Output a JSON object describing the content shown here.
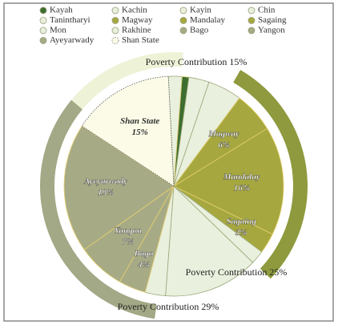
{
  "chart_data": {
    "type": "pie",
    "categories": [
      "Kayah",
      "Kachin",
      "Kayin",
      "Chin",
      "Tanintharyi",
      "Magway",
      "Mandalay",
      "Sagaing",
      "Mon",
      "Rakhine",
      "Bago",
      "Yangon",
      "Ayeyarwady",
      "Shan State"
    ],
    "values": [
      1,
      2,
      3,
      5,
      2,
      6,
      16,
      3,
      3,
      14,
      4,
      7,
      19,
      15
    ],
    "value_labels": [
      null,
      null,
      null,
      null,
      null,
      "6%",
      "16%",
      "3%",
      null,
      null,
      "4%",
      "7%",
      "19%",
      "15%"
    ],
    "colors": [
      "#3d6e30",
      "#e9f0dd",
      "#e9f0dd",
      "#e9f0dd",
      "#e9f0dd",
      "#a6a83f",
      "#a6a83f",
      "#a6a83f",
      "#e9f0dd",
      "#e9f0dd",
      "#a7ab85",
      "#a7ab85",
      "#a7ab85",
      "#fbfbe8"
    ],
    "annotations": [
      {
        "text": "Poverty Contribution 15%",
        "color": "#eef3d8",
        "categories": [
          "Shan State"
        ]
      },
      {
        "text": "Poverty Contribution 25%",
        "color": "#8e9a3d",
        "categories": [
          "Magway",
          "Mandalay",
          "Sagaing"
        ]
      },
      {
        "text": "Poverty Contribution 29%",
        "color": "#a3a886",
        "categories": [
          "Bago",
          "Yangon",
          "Ayeyarwady"
        ]
      }
    ]
  }
}
